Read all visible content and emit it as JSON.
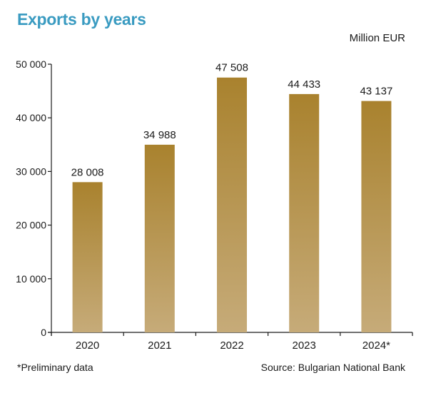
{
  "title": "Exports by years",
  "unit": "Million EUR",
  "footnote": "*Preliminary data",
  "source": "Source: Bulgarian National Bank",
  "colors": {
    "title": "#3a9bc1",
    "bar_top": "#a9822e",
    "bar_bottom": "#c6ab79",
    "axis": "#1a1a1a"
  },
  "chart_data": {
    "type": "bar",
    "categories": [
      "2020",
      "2021",
      "2022",
      "2023",
      "2024*"
    ],
    "values": [
      28008,
      34988,
      47508,
      44433,
      43137
    ],
    "value_labels": [
      "28 008",
      "34 988",
      "47 508",
      "44 433",
      "43 137"
    ],
    "yticks": [
      0,
      10000,
      20000,
      30000,
      40000,
      50000
    ],
    "ytick_labels": [
      "0",
      "10 000",
      "20 000",
      "30 000",
      "40 000",
      "50 000"
    ],
    "ylim": [
      0,
      50000
    ],
    "grid": false,
    "legend": "none"
  }
}
